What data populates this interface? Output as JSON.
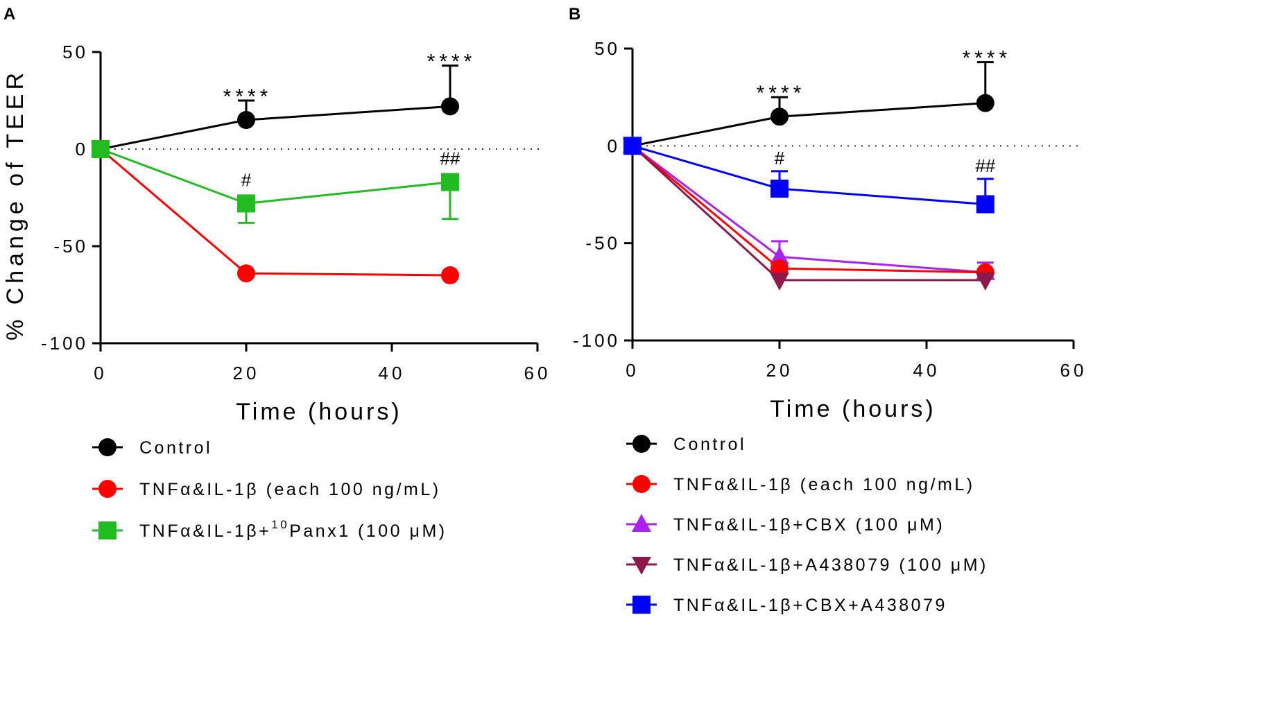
{
  "chart_data": [
    {
      "panel_label": "A",
      "type": "line",
      "title": "",
      "xlabel": "Time (hours)",
      "ylabel": "% Change of TEER",
      "xlim": [
        0,
        60
      ],
      "ylim": [
        -100,
        50
      ],
      "xticks": [
        "0",
        "20",
        "40",
        "60"
      ],
      "yticks": [
        "50",
        "0",
        "-50",
        "-100"
      ],
      "baseline": 0,
      "series": [
        {
          "name": "Control",
          "legend_label": "Control",
          "color": "#000000",
          "marker": "circle",
          "points": [
            {
              "x": 0,
              "y": 0
            },
            {
              "x": 20,
              "y": 15,
              "err_up": 10,
              "err_down": 0,
              "annotation": "****"
            },
            {
              "x": 48,
              "y": 22,
              "err_up": 21,
              "err_down": 0,
              "annotation": "****"
            }
          ]
        },
        {
          "name": "TNFa_IL1b",
          "legend_label": "TNFα&IL-1β (each 100 ng/mL)",
          "color": "#ff0000",
          "marker": "circle",
          "points": [
            {
              "x": 0,
              "y": 0
            },
            {
              "x": 20,
              "y": -64
            },
            {
              "x": 48,
              "y": -65
            }
          ]
        },
        {
          "name": "Panx1",
          "legend_label": "TNFα&IL-1β+",
          "legend_sup": "10",
          "legend_tail": "Panx1 (100 μM)",
          "color": "#22bb22",
          "marker": "square",
          "points": [
            {
              "x": 0,
              "y": 0
            },
            {
              "x": 20,
              "y": -28,
              "err_up": 0,
              "err_down": 10,
              "annotation": "#"
            },
            {
              "x": 48,
              "y": -17,
              "err_up": 0,
              "err_down": 19,
              "annotation": "##"
            }
          ]
        }
      ]
    },
    {
      "panel_label": "B",
      "type": "line",
      "title": "",
      "xlabel": "Time (hours)",
      "ylabel": "",
      "xlim": [
        0,
        60
      ],
      "ylim": [
        -100,
        50
      ],
      "xticks": [
        "0",
        "20",
        "40",
        "60"
      ],
      "yticks": [
        "50",
        "0",
        "-50",
        "-100"
      ],
      "baseline": 0,
      "series": [
        {
          "name": "Control",
          "legend_label": "Control",
          "color": "#000000",
          "marker": "circle",
          "points": [
            {
              "x": 0,
              "y": 0
            },
            {
              "x": 20,
              "y": 15,
              "err_up": 10,
              "err_down": 0,
              "annotation": "****"
            },
            {
              "x": 48,
              "y": 22,
              "err_up": 21,
              "err_down": 0,
              "annotation": "****"
            }
          ]
        },
        {
          "name": "CBX",
          "legend_label": "TNFα&IL-1β+CBX (100 μM)",
          "color": "#aa22ee",
          "marker": "triangle-up",
          "points": [
            {
              "x": 0,
              "y": 0
            },
            {
              "x": 20,
              "y": -57,
              "err_up": 8,
              "err_down": 0
            },
            {
              "x": 48,
              "y": -65,
              "err_up": 5,
              "err_down": 0
            }
          ]
        },
        {
          "name": "TNFa_IL1b",
          "legend_label": "TNFα&IL-1β (each 100 ng/mL)",
          "color": "#ff0000",
          "marker": "circle",
          "points": [
            {
              "x": 0,
              "y": 0
            },
            {
              "x": 20,
              "y": -63
            },
            {
              "x": 48,
              "y": -65
            }
          ]
        },
        {
          "name": "A438079",
          "legend_label": "TNFα&IL-1β+A438079 (100 μM)",
          "color": "#8b1a4a",
          "marker": "triangle-down",
          "points": [
            {
              "x": 0,
              "y": 0
            },
            {
              "x": 20,
              "y": -69
            },
            {
              "x": 48,
              "y": -69
            }
          ]
        },
        {
          "name": "CBX_A438079",
          "legend_label": "TNFα&IL-1β+CBX+A438079",
          "color": "#0000ff",
          "marker": "square",
          "points": [
            {
              "x": 0,
              "y": 0
            },
            {
              "x": 20,
              "y": -22,
              "err_up": 9,
              "err_down": 0,
              "annotation": "#"
            },
            {
              "x": 48,
              "y": -30,
              "err_up": 13,
              "err_down": 0,
              "annotation": "##"
            }
          ]
        }
      ],
      "legend_order": [
        "Control",
        "TNFa_IL1b",
        "CBX",
        "A438079",
        "CBX_A438079"
      ]
    }
  ]
}
